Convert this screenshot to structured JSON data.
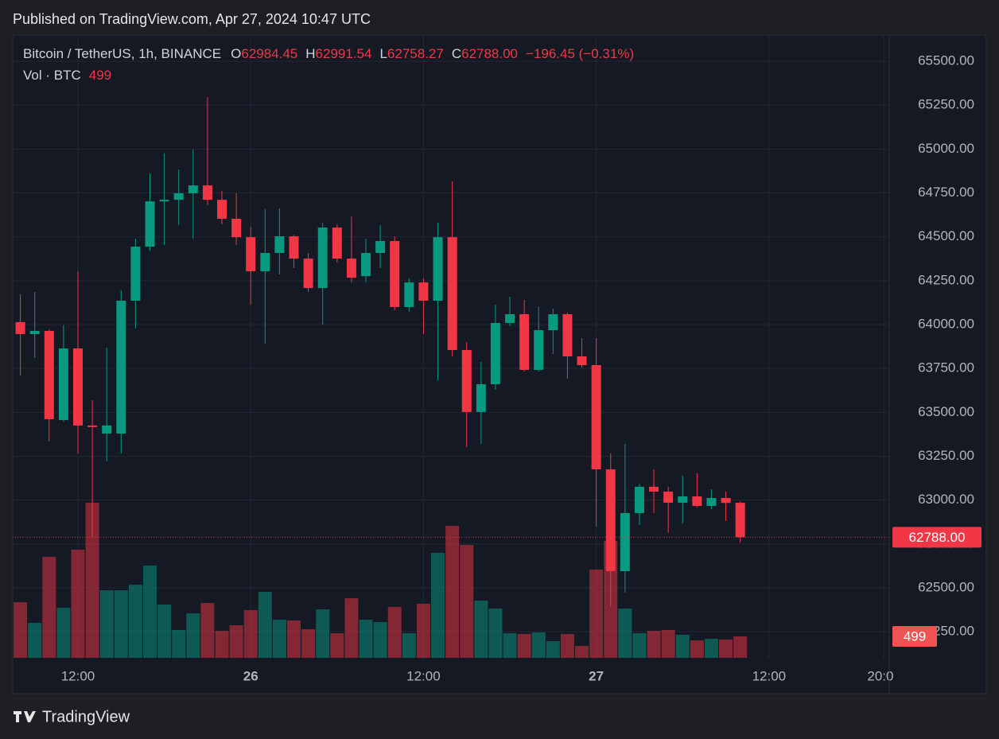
{
  "header": "Published on TradingView.com, Apr 27, 2024 10:47 UTC",
  "footer": "TradingView",
  "chart_data": {
    "type": "candlestick",
    "x": [
      8,
      9,
      10,
      11,
      12,
      13,
      14,
      15,
      16,
      17,
      18,
      19,
      20,
      21,
      22,
      23,
      24,
      25,
      26,
      27,
      28,
      29,
      30,
      31,
      32,
      33,
      34,
      35,
      36,
      37,
      38,
      39,
      40,
      41,
      42,
      43,
      44,
      45,
      46,
      47,
      48,
      49,
      50,
      51,
      52,
      53,
      54,
      55,
      56,
      57,
      58
    ],
    "xlim": [
      7.47,
      68.35
    ],
    "xticks": [
      {
        "value": 12,
        "label": "12:00"
      },
      {
        "value": 24,
        "label": "26"
      },
      {
        "value": 36,
        "label": "12:00"
      },
      {
        "value": 48,
        "label": "27"
      },
      {
        "value": 60,
        "label": "12:00"
      },
      {
        "value": 68,
        "label": "20:00"
      }
    ],
    "ylim": [
      61897,
      65650
    ],
    "yticks": [
      {
        "value": 62250,
        "label": "62250.00"
      },
      {
        "value": 62500,
        "label": "62500.00"
      },
      {
        "value": 62750,
        "label": "62750.00"
      },
      {
        "value": 63000,
        "label": "63000.00"
      },
      {
        "value": 63250,
        "label": "63250.00"
      },
      {
        "value": 63500,
        "label": "63500.00"
      },
      {
        "value": 63750,
        "label": "63750.00"
      },
      {
        "value": 64000,
        "label": "64000.00"
      },
      {
        "value": 64250,
        "label": "64250.00"
      },
      {
        "value": 64500,
        "label": "64500.00"
      },
      {
        "value": 64750,
        "label": "64750.00"
      },
      {
        "value": 65000,
        "label": "65000.00"
      },
      {
        "value": 65250,
        "label": "65250.00"
      },
      {
        "value": 65500,
        "label": "65500.00"
      }
    ],
    "grid": true,
    "up_color": "#089981",
    "down_color": "#f23645",
    "series": [
      {
        "name": "Bitcoin / TetherUS, 1h, BINANCE",
        "open": [
          64014,
          63946,
          63964,
          63456,
          63864,
          63425,
          63379,
          63379,
          64136,
          64444,
          64702,
          64711,
          64748,
          64793,
          64711,
          64603,
          64498,
          64304,
          64408,
          64503,
          64376,
          64208,
          64553,
          64376,
          64276,
          64408,
          64476,
          64100,
          64240,
          64136,
          64498,
          63855,
          63502,
          63660,
          64009,
          64059,
          63742,
          63968,
          64059,
          63819,
          63769,
          63175,
          62595,
          62926,
          63076,
          63048,
          62985,
          63021,
          62967,
          63012,
          62984.45
        ],
        "high": [
          64172,
          64186,
          63973,
          63996,
          64304,
          63569,
          63869,
          64195,
          64489,
          64861,
          64974,
          64884,
          64997,
          65296,
          64761,
          64748,
          64557,
          64657,
          64662,
          64512,
          64408,
          64580,
          64571,
          64616,
          64489,
          64566,
          64503,
          64263,
          64263,
          64580,
          64816,
          63900,
          63787,
          64113,
          64159,
          64141,
          64104,
          64091,
          64068,
          63923,
          63923,
          63266,
          63320,
          63094,
          63175,
          63076,
          63139,
          63153,
          63062,
          63048,
          62991.54
        ],
        "low": [
          63710,
          63810,
          63334,
          63447,
          63266,
          62790,
          63221,
          63266,
          63977,
          64421,
          64453,
          64566,
          64489,
          64680,
          64571,
          64453,
          64113,
          63891,
          64286,
          64322,
          64186,
          64000,
          64354,
          64240,
          64240,
          64322,
          64082,
          64073,
          63946,
          63683,
          63819,
          63302,
          63320,
          63628,
          63991,
          63733,
          63733,
          63832,
          63692,
          63755,
          62849,
          62391,
          62473,
          62858,
          62926,
          62813,
          62867,
          62958,
          62949,
          62881,
          62758.27
        ],
        "close": [
          63946,
          63964,
          63461,
          63864,
          63425,
          63416,
          63425,
          64136,
          64444,
          64702,
          64711,
          64748,
          64793,
          64711,
          64603,
          64498,
          64304,
          64408,
          64503,
          64376,
          64208,
          64553,
          64376,
          64267,
          64408,
          64476,
          64100,
          64240,
          64136,
          64498,
          63855,
          63502,
          63660,
          64009,
          64059,
          63742,
          63968,
          64059,
          63819,
          63769,
          63175,
          62595,
          62926,
          63076,
          63048,
          62985,
          63021,
          62967,
          63012,
          62984,
          62788.0
        ],
        "legend_labels": [
          {
            "key": "O",
            "text": "62984.45"
          },
          {
            "key": "H",
            "text": "62991.54"
          },
          {
            "key": "L",
            "text": "62758.27"
          },
          {
            "key": "C",
            "text": "62788.00"
          }
        ],
        "change_label": "−196.45 (−0.31%)",
        "last_label": "62788.00"
      },
      {
        "name": "Vol · BTC",
        "values": [
          1294,
          813,
          2347,
          1164,
          2513,
          3604,
          1571,
          1571,
          1700,
          2144,
          1238,
          647,
          1035,
          1275,
          628,
          758,
          1109,
          1534,
          887,
          869,
          665,
          1127,
          573,
          1386,
          887,
          832,
          1183,
          573,
          1257,
          2440,
          3068,
          2624,
          1331,
          1146,
          573,
          554,
          591,
          388,
          554,
          277,
          2051,
          2717,
          1146,
          573,
          628,
          647,
          536,
          407,
          444,
          425,
          499
        ],
        "legend_label": "499",
        "last_label": "499"
      }
    ]
  }
}
